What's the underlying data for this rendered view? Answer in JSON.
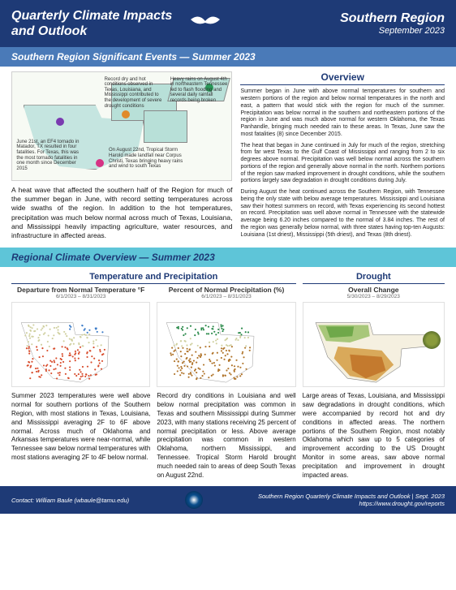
{
  "header": {
    "title_line1": "Quarterly Climate Impacts",
    "title_line2": "and Outlook",
    "region": "Southern Region",
    "date": "September 2023"
  },
  "events_bar": "Southern Region Significant Events — Summer 2023",
  "map_notes": {
    "n1": "June 21st, an EF4 tornado in Matador, TX resulted in four fatalities. For Texas, this was the most tornado fatalities in one month since December 2015",
    "n2": "Record dry and hot conditions observed in Texas, Louisiana, and Mississippi contributed to the development of severe drought conditions",
    "n3": "Heavy rains on August 4th in northeastern Tennessee led to flash flooding and several daily rainfall records being broken",
    "n4": "On August 22nd, Tropical Storm Harold made landfall near Corpus Christi, Texas bringing heavy rains and wind to south Texas"
  },
  "heat_caption": "A heat wave that affected the southern half of the Region for much of the summer began in June, with record setting temperatures across wide swaths of the region. In addition to the hot temperatures, precipitation was much below normal across much of Texas, Louisiana, and Mississippi heavily impacting agriculture, water resources, and infrastructure in affected areas.",
  "overview": {
    "title": "Overview",
    "p1": "Summer began in June with above normal temperatures for southern and western portions of the region and below normal temperatures in the north and east, a pattern that would stick with the region for much of the summer. Precipitation was below normal in the southern and northeastern portions of the region in June and was much above normal for western Oklahoma, the Texas Panhandle, bringing much needed rain to these areas. In Texas, June saw the most fatalities (8) since December 2015.",
    "p2": "The heat that began in June continued in July for much of the region, stretching from far west Texas to the Gulf Coast of Mississippi and ranging from 2 to six degrees above normal. Precipitation was well below normal across the southern portions of the region and generally above normal in the north. Northern portions of the region saw marked improvement in drought conditions, while the southern portions largely saw degradation in drought conditions during July.",
    "p3": "During August the heat continued across the Southern Region, with Tennessee being the only state with below average temperatures. Mississippi and Louisiana saw their hottest summers on record, with Texas experiencing its second hottest on record.  Precipitation was well above normal in Tennessee with the statewide average being 6.20 inches compared to the normal of 3.84 inches. The rest of the region was generally below normal, with three states having top-ten Augusts: Louisiana (1st driest), Mississippi (5th driest), and Texas (8th driest)."
  },
  "regional_bar": "Regional Climate Overview — Summer 2023",
  "temp_precip": {
    "title": "Temperature and Precipitation",
    "left": {
      "sub": "Departure from Normal Temperature °F",
      "date": "6/1/2023 – 8/31/2023"
    },
    "right": {
      "sub": "Percent of Normal Precipitation (%)",
      "date": "6/1/2023 – 8/31/2023"
    },
    "text_left": "Summer 2023 temperatures were well above normal for southern portions of the Southern Region, with most stations in Texas, Louisiana, and Mississippi averaging 2F to 6F above normal. Across much of Oklahoma and Arkansas temperatures were near-normal, while Tennessee saw below normal temperatures with most stations averaging 2F to 4F below normal.",
    "text_right": "Record dry conditions in Louisiana and well below normal precipitation was common in Texas and southern Mississippi during Summer 2023, with many stations receiving 25 percent of normal precipitation or less. Above average precipitation was common in western Oklahoma, northern Mississippi, and Tennessee. Tropical Storm Harold brought much needed rain to areas of deep South Texas on August 22nd."
  },
  "drought": {
    "title": "Drought",
    "sub": "Overall Change",
    "date": "5/30/2023 – 8/29/2023",
    "text": "Large areas of Texas, Louisiana, and Mississippi saw degradations in drought conditions, which were accompanied by record hot and dry conditions in affected areas. The northern portions of the Southern Region, most notably Oklahoma which saw up to 5 categories of improvement according to the US Drought Monitor in some areas, saw above normal precipitation and improvement in drought impacted areas."
  },
  "footer": {
    "contact_label": "Contact:",
    "contact_name": "William Baule (wbaule@tamu.edu)",
    "line1": "Southern Region Quarterly Climate Impacts and Outlook | Sept. 2023",
    "line2": "https://www.drought.gov/reports"
  },
  "chart_styles": {
    "temp_bg": "#ffffff",
    "precip_bg": "#ffffff",
    "drought_bg": "#ffffff",
    "map_colors": {
      "hot": "#d84c2c",
      "cold": "#3a7bc8",
      "neutral": "#d0d0a0",
      "wet": "#2a8a4a",
      "dry": "#b0742a",
      "drought_deg": "#c98a3e",
      "drought_imp": "#7aa856"
    }
  }
}
